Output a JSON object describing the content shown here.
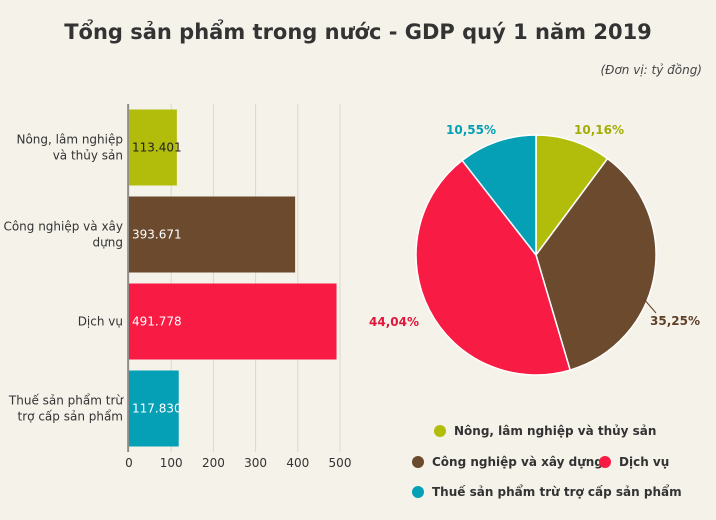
{
  "title": "Tổng sản phẩm trong nước - GDP quý 1 năm 2019",
  "unit": "(Đơn vị: tỷ đồng)",
  "chart_data": [
    {
      "type": "bar",
      "orientation": "horizontal",
      "categories": [
        [
          "Nông, lâm nghiệp",
          "và thủy sản"
        ],
        [
          "Công nghiệp và xây",
          "dựng"
        ],
        [
          "Dịch vụ"
        ],
        [
          "Thuế sản phẩm trừ",
          "trợ cấp sản phẩm"
        ]
      ],
      "values": [
        113401,
        393671,
        491778,
        117830
      ],
      "value_labels": [
        "113.401",
        "393.671",
        "491.778",
        "117.830"
      ],
      "colors": [
        "#b2bc0b",
        "#6b4a2e",
        "#f81b44",
        "#05a0b5"
      ],
      "value_label_colors": [
        "#222222",
        "#ffffff",
        "#ffffff",
        "#ffffff"
      ],
      "x_ticks": [
        "0",
        "100",
        "200",
        "300",
        "400",
        "500"
      ],
      "x_tick_values": [
        0,
        100000,
        200000,
        300000,
        400000,
        500000
      ],
      "xlim": [
        0,
        500000
      ],
      "grid": true
    },
    {
      "type": "pie",
      "labels": [
        "Nông, lâm nghiệp và thủy sản",
        "Công nghiệp và xây dựng",
        "Dịch vụ",
        "Thuế sản phẩm trừ trợ cấp sản phẩm"
      ],
      "values": [
        10.16,
        35.25,
        44.04,
        10.55
      ],
      "value_labels": [
        "10,16%",
        "35,25%",
        "44,04%",
        "10,55%"
      ],
      "colors": [
        "#b2bc0b",
        "#6b4a2e",
        "#f81b44",
        "#05a0b5"
      ],
      "label_colors": [
        "#a3ad06",
        "#5f4127",
        "#e0163d",
        "#05a0b5"
      ],
      "legend": {
        "placement": "bottom",
        "items": [
          {
            "label": "Nông, lâm nghiệp và thủy sản",
            "color": "#b2bc0b"
          },
          {
            "label": "Công nghiệp và xây dựng",
            "color": "#6b4a2e"
          },
          {
            "label": "Dịch vụ",
            "color": "#f81b44"
          },
          {
            "label": "Thuế sản phẩm trừ trợ cấp sản phẩm",
            "color": "#05a0b5"
          }
        ]
      }
    }
  ]
}
